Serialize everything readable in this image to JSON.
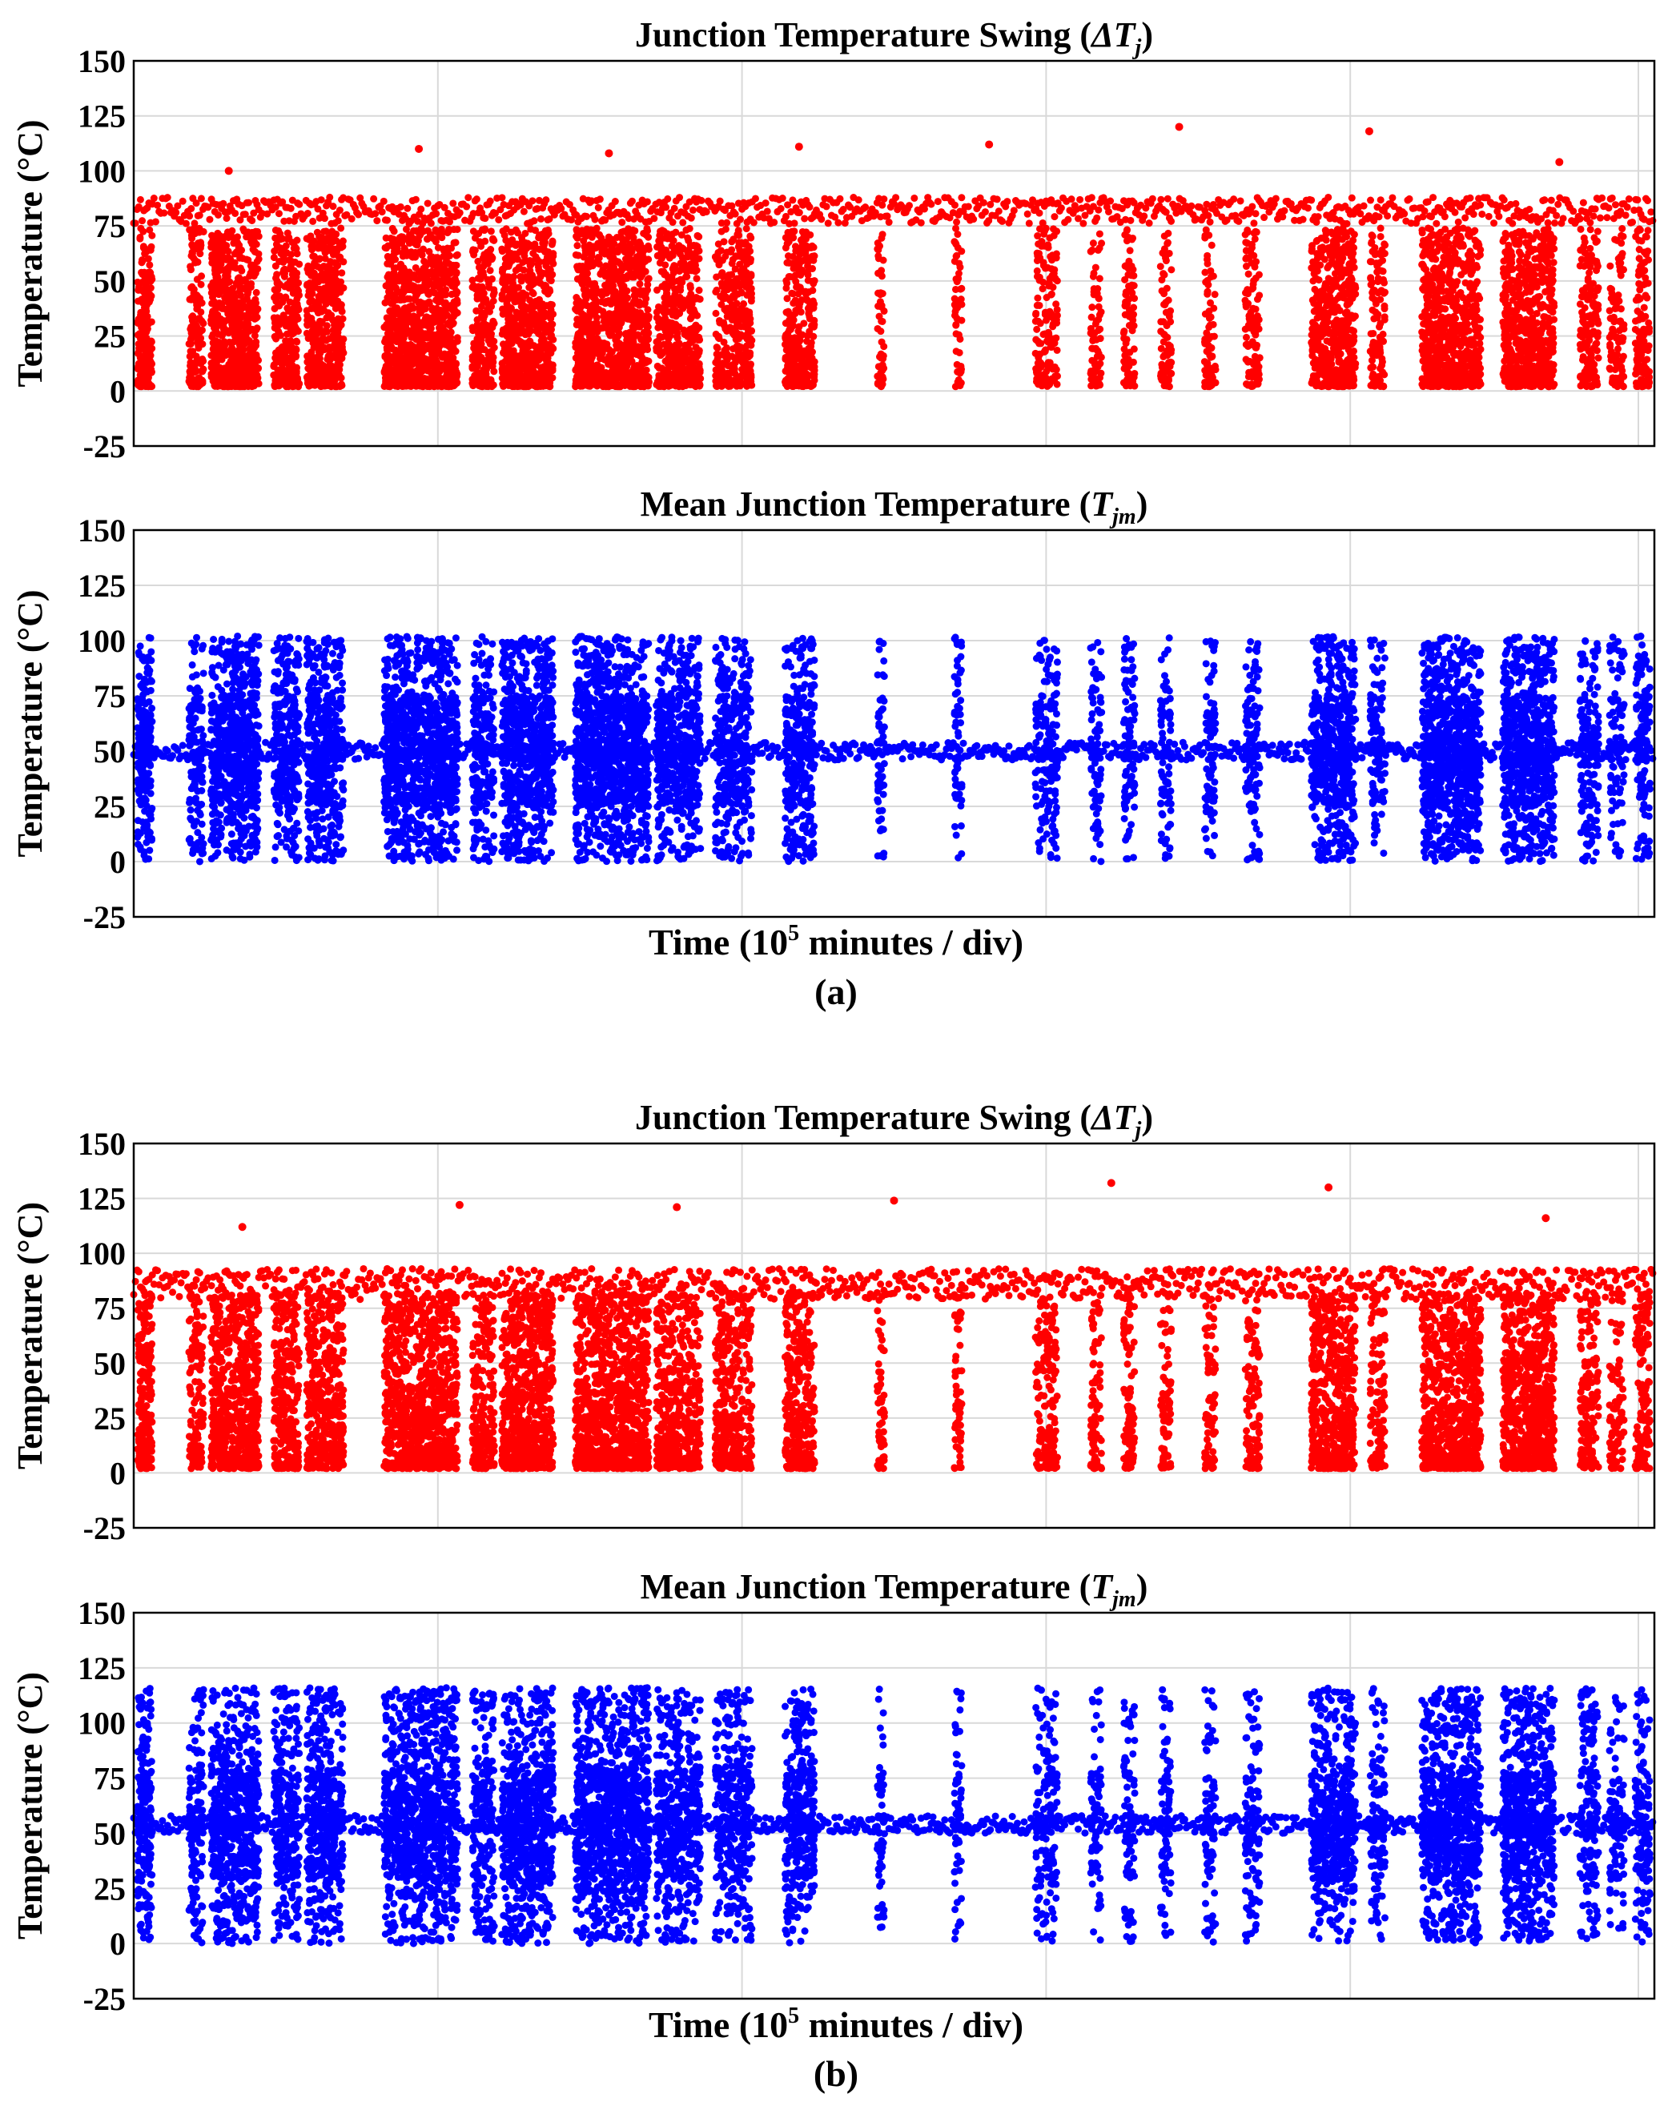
{
  "figure": {
    "panel_a": {
      "caption": "(a)",
      "xlabel": "Time (10",
      "xlabel_exp": "5",
      "xlabel_tail": " minutes / div)"
    },
    "panel_b": {
      "caption": "(b)",
      "xlabel": "Time (10",
      "xlabel_exp": "5",
      "xlabel_tail": " minutes / div)"
    }
  },
  "chart_data": [
    {
      "id": "a-swing",
      "type": "scatter",
      "title": "Junction Temperature Swing (",
      "title_sym": "ΔT",
      "title_sub": "j",
      "title_end": ")",
      "xlabel": "",
      "ylabel": "Temperature (°C)",
      "ylim": [
        -25,
        150
      ],
      "yticks": [
        "150",
        "125",
        "100",
        "75",
        "50",
        "25",
        "0",
        "-25"
      ],
      "x_divisions": 5,
      "grid": true,
      "color": "#ff0000",
      "series_stats": {
        "baseline": 82,
        "baseline_spread": 6,
        "burst_max": 72,
        "peaks": [
          100,
          110,
          108,
          111,
          112,
          120,
          118,
          104
        ]
      }
    },
    {
      "id": "a-mean",
      "type": "scatter",
      "title": "Mean Junction Temperature (",
      "title_sym": "T",
      "title_sub": "jm",
      "title_end": ")",
      "xlabel": "Time (10^5 minutes / div)",
      "ylabel": "Temperature (°C)",
      "ylim": [
        -25,
        150
      ],
      "yticks": [
        "150",
        "125",
        "100",
        "75",
        "50",
        "25",
        "0",
        "-25"
      ],
      "x_divisions": 5,
      "grid": true,
      "color": "#0000ff",
      "series_stats": {
        "baseline": 50,
        "baseline_spread": 4,
        "burst_min": 0,
        "burst_max": 107
      }
    },
    {
      "id": "b-swing",
      "type": "scatter",
      "title": "Junction Temperature Swing (",
      "title_sym": "ΔT",
      "title_sub": "j",
      "title_end": ")",
      "xlabel": "",
      "ylabel": "Temperature (°C)",
      "ylim": [
        -25,
        150
      ],
      "yticks": [
        "150",
        "125",
        "100",
        "75",
        "50",
        "25",
        "0",
        "-25"
      ],
      "x_divisions": 5,
      "grid": true,
      "color": "#ff0000",
      "series_stats": {
        "baseline": 86,
        "baseline_spread": 7,
        "burst_max": 80,
        "peaks": [
          112,
          122,
          121,
          124,
          132,
          130,
          116
        ]
      }
    },
    {
      "id": "b-mean",
      "type": "scatter",
      "title": "Mean Junction Temperature (",
      "title_sym": "T",
      "title_sub": "jm",
      "title_end": ")",
      "xlabel": "Time (10^5 minutes / div)",
      "ylabel": "Temperature (°C)",
      "ylim": [
        -25,
        150
      ],
      "yticks": [
        "150",
        "125",
        "100",
        "75",
        "50",
        "25",
        "0",
        "-25"
      ],
      "x_divisions": 5,
      "grid": true,
      "color": "#0000ff",
      "series_stats": {
        "baseline": 54,
        "baseline_spread": 4,
        "burst_min": 0,
        "burst_max": 121
      }
    }
  ]
}
